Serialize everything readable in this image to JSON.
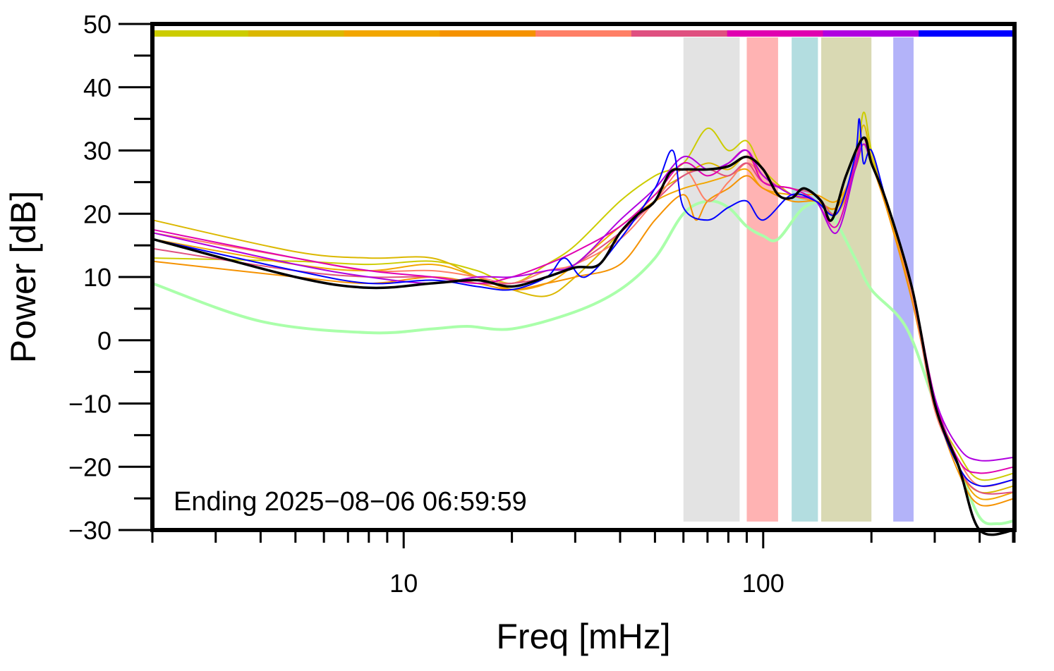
{
  "chart_data": {
    "type": "line",
    "xlabel": "Freq [mHz]",
    "ylabel": "Power [dB]",
    "xscale": "log",
    "xlim": [
      2,
      500
    ],
    "ylim": [
      -30,
      50
    ],
    "x_tick_labels": [
      {
        "value": 10,
        "label": "10"
      },
      {
        "value": 100,
        "label": "100"
      }
    ],
    "y_tick_labels": [
      {
        "value": 50,
        "label": "50"
      },
      {
        "value": 40,
        "label": "40"
      },
      {
        "value": 30,
        "label": "30"
      },
      {
        "value": 20,
        "label": "20"
      },
      {
        "value": 10,
        "label": "10"
      },
      {
        "value": 0,
        "label": "0"
      },
      {
        "value": -10,
        "label": "−10"
      },
      {
        "value": -20,
        "label": "−20"
      },
      {
        "value": -30,
        "label": "−30"
      }
    ],
    "annotation": "Ending 2025−08−06 06:59:59",
    "grid": false,
    "color_bar": [
      "#cccc00",
      "#dbb800",
      "#f2a600",
      "#f59200",
      "#ff7f66",
      "#df5080",
      "#e000b0",
      "#b000e0",
      "#0000ff"
    ],
    "bands": [
      {
        "x0": 60,
        "x1": 86,
        "color": "#e3e3e3"
      },
      {
        "x0": 90,
        "x1": 110,
        "color": "#ffb3b3"
      },
      {
        "x0": 120,
        "x1": 142,
        "color": "#b3dde0"
      },
      {
        "x0": 145,
        "x1": 200,
        "color": "#d9d9b3"
      },
      {
        "x0": 230,
        "x1": 262,
        "color": "#b3b3f9"
      }
    ],
    "series": [
      {
        "color": "#aaffaa",
        "width": 4,
        "points": [
          [
            2,
            9
          ],
          [
            4,
            3
          ],
          [
            8,
            1.2
          ],
          [
            12,
            1.8
          ],
          [
            15,
            2.2
          ],
          [
            20,
            1.8
          ],
          [
            30,
            4.5
          ],
          [
            40,
            8
          ],
          [
            50,
            13
          ],
          [
            60,
            20
          ],
          [
            70,
            22
          ],
          [
            80,
            21
          ],
          [
            90,
            18
          ],
          [
            100,
            16.5
          ],
          [
            110,
            16
          ],
          [
            130,
            21
          ],
          [
            150,
            21
          ],
          [
            180,
            13
          ],
          [
            200,
            8
          ],
          [
            250,
            2
          ],
          [
            300,
            -10
          ],
          [
            350,
            -20
          ],
          [
            400,
            -28
          ],
          [
            450,
            -29
          ],
          [
            500,
            -28.5
          ]
        ]
      },
      {
        "color": "#cccc00",
        "width": 2,
        "points": [
          [
            2,
            13
          ],
          [
            5,
            12.5
          ],
          [
            8,
            12
          ],
          [
            12,
            12.5
          ],
          [
            16,
            11
          ],
          [
            20,
            9
          ],
          [
            25,
            12
          ],
          [
            30,
            15
          ],
          [
            40,
            22
          ],
          [
            50,
            26
          ],
          [
            60,
            28
          ],
          [
            70,
            33.5
          ],
          [
            80,
            30
          ],
          [
            90,
            31.5
          ],
          [
            100,
            27
          ],
          [
            120,
            23
          ],
          [
            140,
            22
          ],
          [
            160,
            20
          ],
          [
            180,
            27
          ],
          [
            190,
            36
          ],
          [
            200,
            30
          ],
          [
            220,
            22
          ],
          [
            260,
            8
          ],
          [
            300,
            -10
          ],
          [
            350,
            -18
          ],
          [
            400,
            -22
          ],
          [
            500,
            -21
          ]
        ]
      },
      {
        "color": "#dbb800",
        "width": 2,
        "points": [
          [
            2,
            19
          ],
          [
            5,
            14
          ],
          [
            8,
            13
          ],
          [
            12,
            13
          ],
          [
            16,
            10
          ],
          [
            20,
            8
          ],
          [
            25,
            7
          ],
          [
            30,
            10
          ],
          [
            40,
            17
          ],
          [
            50,
            23
          ],
          [
            60,
            26
          ],
          [
            70,
            28
          ],
          [
            80,
            27
          ],
          [
            90,
            29
          ],
          [
            100,
            26
          ],
          [
            120,
            23
          ],
          [
            140,
            22
          ],
          [
            160,
            21
          ],
          [
            180,
            28
          ],
          [
            190,
            34
          ],
          [
            200,
            29
          ],
          [
            220,
            22
          ],
          [
            260,
            7
          ],
          [
            300,
            -9
          ],
          [
            350,
            -20
          ],
          [
            400,
            -24
          ],
          [
            500,
            -23
          ]
        ]
      },
      {
        "color": "#f2a600",
        "width": 2,
        "points": [
          [
            2,
            16
          ],
          [
            5,
            12
          ],
          [
            8,
            11
          ],
          [
            12,
            12
          ],
          [
            16,
            10
          ],
          [
            20,
            8
          ],
          [
            25,
            9
          ],
          [
            30,
            12
          ],
          [
            40,
            18
          ],
          [
            50,
            22
          ],
          [
            60,
            24
          ],
          [
            70,
            25
          ],
          [
            80,
            26
          ],
          [
            90,
            27
          ],
          [
            100,
            24
          ],
          [
            120,
            23
          ],
          [
            140,
            23
          ],
          [
            160,
            22
          ],
          [
            180,
            27
          ],
          [
            190,
            31
          ],
          [
            200,
            28
          ],
          [
            220,
            21
          ],
          [
            260,
            7
          ],
          [
            300,
            -10
          ],
          [
            350,
            -20
          ],
          [
            400,
            -25
          ],
          [
            500,
            -24
          ]
        ]
      },
      {
        "color": "#f59200",
        "width": 2,
        "points": [
          [
            2,
            12.5
          ],
          [
            5,
            10
          ],
          [
            8,
            9
          ],
          [
            12,
            10
          ],
          [
            16,
            9
          ],
          [
            20,
            8
          ],
          [
            25,
            9
          ],
          [
            30,
            10
          ],
          [
            40,
            12
          ],
          [
            50,
            19
          ],
          [
            60,
            23
          ],
          [
            65,
            19
          ],
          [
            70,
            22
          ],
          [
            80,
            24
          ],
          [
            90,
            26
          ],
          [
            100,
            24
          ],
          [
            120,
            22
          ],
          [
            140,
            22
          ],
          [
            160,
            21
          ],
          [
            180,
            27
          ],
          [
            190,
            31
          ],
          [
            200,
            28
          ],
          [
            220,
            21
          ],
          [
            260,
            6
          ],
          [
            300,
            -10
          ],
          [
            350,
            -21
          ],
          [
            400,
            -26
          ],
          [
            500,
            -25
          ]
        ]
      },
      {
        "color": "#ff7f66",
        "width": 2,
        "points": [
          [
            2,
            17
          ],
          [
            5,
            13
          ],
          [
            8,
            11
          ],
          [
            12,
            11
          ],
          [
            16,
            10
          ],
          [
            20,
            9
          ],
          [
            25,
            11
          ],
          [
            30,
            12
          ],
          [
            40,
            16
          ],
          [
            50,
            22
          ],
          [
            60,
            27
          ],
          [
            70,
            22
          ],
          [
            80,
            25
          ],
          [
            90,
            28
          ],
          [
            100,
            26
          ],
          [
            120,
            23
          ],
          [
            140,
            22
          ],
          [
            160,
            20
          ],
          [
            180,
            28
          ],
          [
            190,
            31
          ],
          [
            200,
            28
          ],
          [
            220,
            22
          ],
          [
            260,
            7
          ],
          [
            300,
            -11
          ],
          [
            350,
            -19
          ],
          [
            400,
            -23
          ],
          [
            500,
            -22
          ]
        ]
      },
      {
        "color": "#df5080",
        "width": 2,
        "points": [
          [
            2,
            14.5
          ],
          [
            5,
            11
          ],
          [
            8,
            10
          ],
          [
            12,
            10
          ],
          [
            16,
            9
          ],
          [
            20,
            9
          ],
          [
            25,
            10
          ],
          [
            30,
            12
          ],
          [
            40,
            17
          ],
          [
            50,
            22
          ],
          [
            60,
            26
          ],
          [
            70,
            27
          ],
          [
            80,
            26
          ],
          [
            90,
            28
          ],
          [
            100,
            25
          ],
          [
            120,
            24
          ],
          [
            140,
            23
          ],
          [
            160,
            20
          ],
          [
            180,
            28
          ],
          [
            190,
            32
          ],
          [
            200,
            28
          ],
          [
            220,
            22
          ],
          [
            260,
            8
          ],
          [
            300,
            -9
          ],
          [
            350,
            -20
          ],
          [
            400,
            -24
          ],
          [
            500,
            -24
          ]
        ]
      },
      {
        "color": "#e000b0",
        "width": 2,
        "points": [
          [
            2,
            17.5
          ],
          [
            5,
            13
          ],
          [
            8,
            11
          ],
          [
            12,
            10
          ],
          [
            16,
            9
          ],
          [
            20,
            10
          ],
          [
            25,
            12
          ],
          [
            30,
            14
          ],
          [
            40,
            18
          ],
          [
            50,
            23
          ],
          [
            60,
            28
          ],
          [
            70,
            26
          ],
          [
            80,
            28
          ],
          [
            90,
            30
          ],
          [
            100,
            25
          ],
          [
            120,
            24
          ],
          [
            140,
            22
          ],
          [
            160,
            18
          ],
          [
            180,
            28
          ],
          [
            190,
            32
          ],
          [
            200,
            28
          ],
          [
            220,
            22
          ],
          [
            260,
            8
          ],
          [
            300,
            -9
          ],
          [
            350,
            -19
          ],
          [
            400,
            -21
          ],
          [
            500,
            -20
          ]
        ]
      },
      {
        "color": "#b000e0",
        "width": 2,
        "points": [
          [
            2,
            17
          ],
          [
            5,
            12
          ],
          [
            8,
            10
          ],
          [
            12,
            9
          ],
          [
            16,
            10
          ],
          [
            20,
            10
          ],
          [
            25,
            11
          ],
          [
            30,
            12
          ],
          [
            40,
            19
          ],
          [
            50,
            24
          ],
          [
            60,
            29
          ],
          [
            70,
            27
          ],
          [
            80,
            28
          ],
          [
            90,
            30
          ],
          [
            100,
            26
          ],
          [
            120,
            23
          ],
          [
            140,
            22
          ],
          [
            160,
            17
          ],
          [
            180,
            27
          ],
          [
            190,
            31
          ],
          [
            200,
            28
          ],
          [
            220,
            22
          ],
          [
            260,
            8
          ],
          [
            300,
            -9
          ],
          [
            350,
            -17
          ],
          [
            400,
            -19
          ],
          [
            500,
            -18.5
          ]
        ]
      },
      {
        "color": "#0000ff",
        "width": 2,
        "points": [
          [
            2,
            16
          ],
          [
            5,
            11
          ],
          [
            8,
            9
          ],
          [
            12,
            9.5
          ],
          [
            16,
            8.5
          ],
          [
            20,
            8
          ],
          [
            25,
            10
          ],
          [
            28,
            13
          ],
          [
            32,
            10
          ],
          [
            40,
            16
          ],
          [
            50,
            24
          ],
          [
            56,
            30
          ],
          [
            60,
            21
          ],
          [
            70,
            19
          ],
          [
            80,
            21
          ],
          [
            90,
            22
          ],
          [
            100,
            19
          ],
          [
            120,
            23
          ],
          [
            140,
            22
          ],
          [
            160,
            20
          ],
          [
            180,
            29
          ],
          [
            185,
            35
          ],
          [
            190,
            28
          ],
          [
            200,
            30
          ],
          [
            220,
            22
          ],
          [
            260,
            8
          ],
          [
            300,
            -10
          ],
          [
            350,
            -20
          ],
          [
            400,
            -23
          ],
          [
            500,
            -22
          ]
        ]
      },
      {
        "color": "#000000",
        "width": 3.5,
        "points": [
          [
            2,
            16
          ],
          [
            5,
            10
          ],
          [
            8,
            8.3
          ],
          [
            12,
            9
          ],
          [
            16,
            9.5
          ],
          [
            20,
            8.5
          ],
          [
            25,
            10
          ],
          [
            30,
            11.5
          ],
          [
            35,
            12
          ],
          [
            40,
            17
          ],
          [
            45,
            20
          ],
          [
            50,
            22
          ],
          [
            55,
            26.5
          ],
          [
            60,
            27
          ],
          [
            70,
            27
          ],
          [
            80,
            27.5
          ],
          [
            90,
            29
          ],
          [
            100,
            27
          ],
          [
            110,
            23
          ],
          [
            120,
            22.5
          ],
          [
            130,
            24
          ],
          [
            145,
            22
          ],
          [
            155,
            19
          ],
          [
            170,
            26
          ],
          [
            190,
            32
          ],
          [
            200,
            28
          ],
          [
            220,
            22
          ],
          [
            260,
            8
          ],
          [
            300,
            -10
          ],
          [
            350,
            -20
          ],
          [
            400,
            -30
          ],
          [
            500,
            -30
          ]
        ]
      }
    ]
  }
}
